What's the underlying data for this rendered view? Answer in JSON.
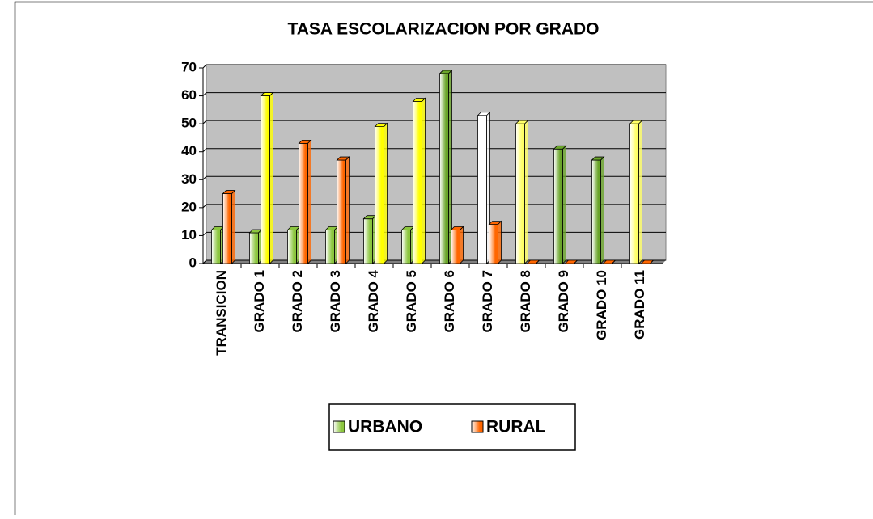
{
  "chart_data": {
    "type": "bar3d",
    "title": "TASA ESCOLARIZACION POR GRADO",
    "categories": [
      "TRANSICION",
      "GRADO 1",
      "GRADO 2",
      "GRADO 3",
      "GRADO 4",
      "GRADO 5",
      "GRADO 6",
      "GRADO 7",
      "GRADO 8",
      "GRADO 9",
      "GRADO 10",
      "GRADO 11"
    ],
    "series": [
      {
        "name": "URBANO",
        "color": "#8cc63f",
        "values": [
          12,
          11,
          12,
          12,
          16,
          12,
          68,
          53,
          50,
          41,
          37,
          50
        ],
        "point_colors": [
          "#8cc63f",
          "#8cc63f",
          "#8cc63f",
          "#8cc63f",
          "#8cc63f",
          "#8cc63f",
          "#6aa52a",
          "#ffffff",
          "#ffff66",
          "#6aa52a",
          "#6aa52a",
          "#ffff66"
        ]
      },
      {
        "name": "RURAL",
        "color": "#ff6600",
        "values": [
          25,
          60,
          43,
          37,
          49,
          58,
          12,
          14,
          0,
          0,
          0,
          0
        ],
        "point_colors": [
          "#ff6600",
          "#ffff00",
          "#ff6600",
          "#ff6600",
          "#ffff00",
          "#ffff00",
          "#ff6600",
          "#ff6600",
          "#ff6600",
          "#ff6600",
          "#ff6600",
          "#ff6600"
        ]
      }
    ],
    "ylim": [
      0,
      70
    ],
    "yticks": [
      0,
      10,
      20,
      30,
      40,
      50,
      60,
      70
    ],
    "grid": true,
    "legend": "bottom"
  }
}
